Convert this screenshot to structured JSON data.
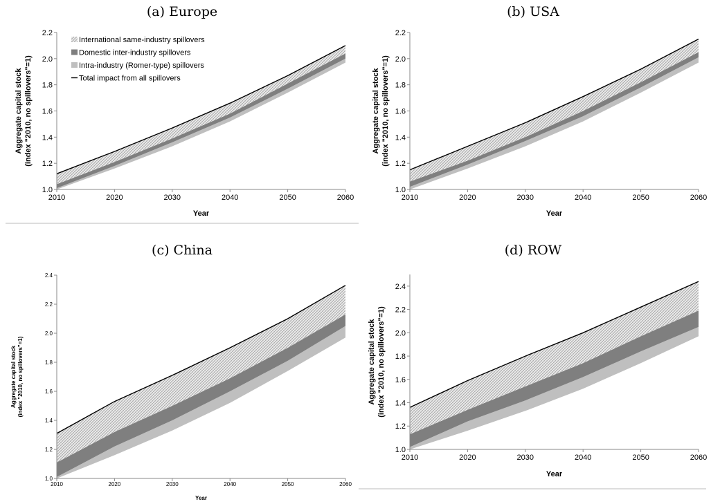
{
  "figure": {
    "legend": [
      {
        "label": "International same-industry spillovers",
        "fill": "hatch"
      },
      {
        "label": "Domestic inter-industry spillovers",
        "fill": "#7f7f7f"
      },
      {
        "label": "Intra-industry (Romer-type) spillovers",
        "fill": "#bfbfbf"
      },
      {
        "label": "Total impact from all spillovers",
        "fill": "line"
      }
    ]
  },
  "chart_data": [
    {
      "type": "area",
      "caption": "(a) Europe",
      "xlabel": "Year",
      "ylabel_line1": "Aggregate capital stock",
      "ylabel_line2": "(index \"2010, no spillovers\"=1)",
      "x": [
        2010,
        2020,
        2030,
        2040,
        2050,
        2060
      ],
      "xlim": [
        2010,
        2060
      ],
      "ylim": [
        1.0,
        2.2
      ],
      "yticks": [
        "1.0",
        "1.2",
        "1.4",
        "1.6",
        "1.8",
        "2.0",
        "2.2"
      ],
      "baseline": [
        1.0,
        1.16,
        1.33,
        1.52,
        1.74,
        1.97
      ],
      "intra_top": [
        1.01,
        1.18,
        1.36,
        1.55,
        1.77,
        2.0
      ],
      "domestic_top": [
        1.04,
        1.21,
        1.39,
        1.58,
        1.81,
        2.04
      ],
      "total": [
        1.12,
        1.29,
        1.47,
        1.66,
        1.87,
        2.1
      ],
      "has_legend": true
    },
    {
      "type": "area",
      "caption": "(b) USA",
      "xlabel": "Year",
      "ylabel_line1": "Aggregate capital stock",
      "ylabel_line2": "(index \"2010, no spillovers\"=1)",
      "x": [
        2010,
        2020,
        2030,
        2040,
        2050,
        2060
      ],
      "xlim": [
        2010,
        2060
      ],
      "ylim": [
        1.0,
        2.2
      ],
      "yticks": [
        "1.0",
        "1.2",
        "1.4",
        "1.6",
        "1.8",
        "2.0",
        "2.2"
      ],
      "baseline": [
        1.0,
        1.16,
        1.33,
        1.52,
        1.74,
        1.97
      ],
      "intra_top": [
        1.02,
        1.19,
        1.37,
        1.56,
        1.78,
        2.01
      ],
      "domestic_top": [
        1.06,
        1.22,
        1.4,
        1.6,
        1.82,
        2.05
      ],
      "total": [
        1.15,
        1.33,
        1.51,
        1.71,
        1.92,
        2.15
      ],
      "has_legend": false
    },
    {
      "type": "area",
      "caption": "(c) China",
      "xlabel": "Year",
      "ylabel_line1": "Aggregate capital stock",
      "ylabel_line2": "(index \"2010, no spillovers\"=1)",
      "x": [
        2010,
        2020,
        2030,
        2040,
        2050,
        2060
      ],
      "xlim": [
        2010,
        2060
      ],
      "ylim": [
        1.0,
        2.4
      ],
      "yticks": [
        "1.0",
        "1.2",
        "1.4",
        "1.6",
        "1.8",
        "2.0",
        "2.2",
        "2.4"
      ],
      "baseline": [
        1.0,
        1.16,
        1.33,
        1.52,
        1.74,
        1.97
      ],
      "intra_top": [
        1.01,
        1.22,
        1.4,
        1.6,
        1.81,
        2.05
      ],
      "domestic_top": [
        1.11,
        1.32,
        1.5,
        1.69,
        1.9,
        2.13
      ],
      "total": [
        1.31,
        1.53,
        1.71,
        1.9,
        2.1,
        2.33
      ],
      "has_legend": false
    },
    {
      "type": "area",
      "caption": "(d) ROW",
      "xlabel": "Year",
      "ylabel_line1": "Aggregate capital stock",
      "ylabel_line2": "(index \"2010, no spillovers\"=1)",
      "x": [
        2010,
        2020,
        2030,
        2040,
        2050,
        2060
      ],
      "xlim": [
        2010,
        2060
      ],
      "ylim": [
        1.0,
        2.5
      ],
      "yticks": [
        "1.0",
        "1.2",
        "1.4",
        "1.6",
        "1.8",
        "2.0",
        "2.2",
        "2.4"
      ],
      "baseline": [
        1.0,
        1.16,
        1.33,
        1.52,
        1.74,
        1.97
      ],
      "intra_top": [
        1.02,
        1.24,
        1.42,
        1.62,
        1.84,
        2.05
      ],
      "domestic_top": [
        1.13,
        1.34,
        1.54,
        1.74,
        1.97,
        2.19
      ],
      "total": [
        1.36,
        1.59,
        1.8,
        2.0,
        2.22,
        2.44
      ],
      "has_legend": false
    }
  ]
}
